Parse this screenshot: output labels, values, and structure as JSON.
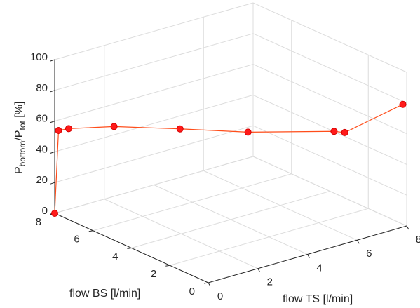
{
  "chart_data": {
    "type": "line",
    "projection": "3d",
    "xlabel": "flow TS [l/min]",
    "ylabel": "flow BS [l/min]",
    "zlabel_parts": [
      "P",
      "bottom",
      "/P",
      "tot",
      " [%]"
    ],
    "x_ticks": [
      0,
      2,
      4,
      6,
      8
    ],
    "y_ticks": [
      0,
      2,
      4,
      6,
      8
    ],
    "z_ticks": [
      0,
      20,
      40,
      60,
      80,
      100
    ],
    "xlim": [
      0,
      8
    ],
    "ylim": [
      0,
      8
    ],
    "zlim": [
      0,
      100
    ],
    "grid": true,
    "marker": "circle",
    "colors": {
      "line": "#ff4d1a",
      "marker": "#ff1a1a"
    },
    "series": [
      {
        "x": [
          0,
          0,
          0.1,
          1,
          2.5,
          4,
          6,
          6.2,
          8
        ],
        "y": [
          8,
          7.8,
          7.4,
          6.2,
          4.7,
          3.1,
          1.2,
          0.9,
          0.2
        ],
        "z": [
          0,
          55,
          58,
          62,
          62,
          62,
          64,
          64,
          78
        ]
      }
    ]
  }
}
